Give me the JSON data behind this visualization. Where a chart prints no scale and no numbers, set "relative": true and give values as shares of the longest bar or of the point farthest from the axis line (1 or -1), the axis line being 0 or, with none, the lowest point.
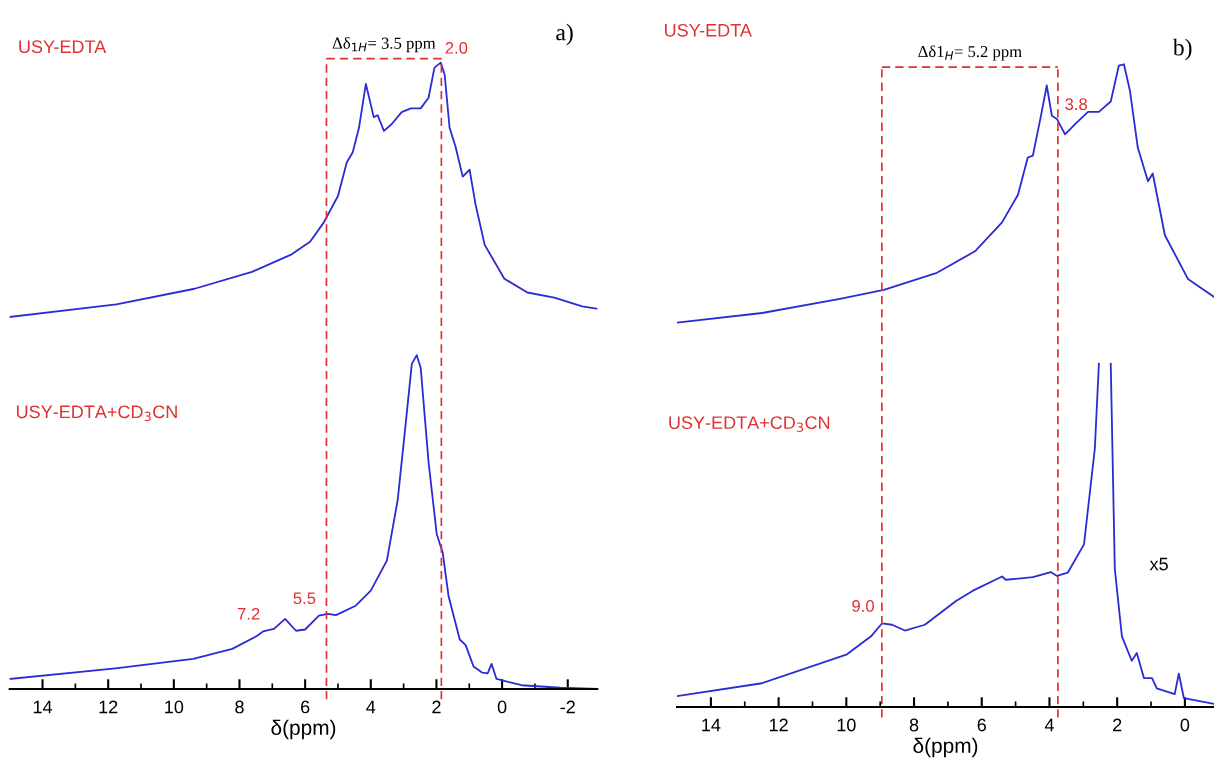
{
  "chart_data": [
    {
      "type": "line",
      "title": "a)",
      "relative": true,
      "xlabel": "δ(ppm)",
      "tick_labels": "x",
      "line_style": "solid",
      "xlim": [
        15,
        -2.9
      ],
      "xticks": [
        14,
        {
          "value": 13,
          "label": null
        },
        12,
        {
          "value": 11,
          "label": null
        },
        10,
        {
          "value": 9,
          "label": null
        },
        8,
        {
          "value": 7,
          "label": null
        },
        6,
        {
          "value": 5,
          "label": null
        },
        4,
        {
          "value": 3,
          "label": null
        },
        2,
        {
          "value": 1,
          "label": null
        },
        0,
        {
          "value": -1,
          "label": null
        },
        -2
      ],
      "series": [
        {
          "color": "#2b2bd6",
          "x": [
            15.0,
            11.75,
            9.37,
            7.62,
            6.41,
            5.85,
            5.43,
            5.0,
            4.73,
            4.55,
            4.36,
            4.15,
            4.0,
            3.91,
            3.79,
            3.6,
            3.36,
            3.06,
            2.78,
            2.48,
            2.24,
            2.06,
            1.87,
            1.75,
            1.6,
            1.42,
            1.2,
            0.99,
            0.81,
            0.53,
            -0.07,
            -0.77,
            -1.59,
            -2.44,
            -2.9
          ],
          "values": [
            0.594,
            0.614,
            0.639,
            0.666,
            0.694,
            0.714,
            0.745,
            0.787,
            0.841,
            0.857,
            0.896,
            0.966,
            0.933,
            0.913,
            0.916,
            0.891,
            0.902,
            0.921,
            0.927,
            0.927,
            0.944,
            0.992,
            1.0,
            0.981,
            0.896,
            0.866,
            0.818,
            0.829,
            0.774,
            0.709,
            0.655,
            0.633,
            0.625,
            0.611,
            0.607
          ]
        },
        {
          "color": "#2b2bd6",
          "x": [
            15.0,
            11.78,
            9.41,
            8.22,
            7.46,
            7.28,
            6.95,
            6.61,
            6.28,
            6.0,
            5.58,
            5.31,
            5.06,
            4.46,
            4.0,
            3.51,
            3.18,
            2.94,
            2.75,
            2.6,
            2.48,
            2.24,
            1.99,
            1.81,
            1.63,
            1.29,
            1.11,
            0.87,
            0.6,
            0.44,
            0.32,
            0.17,
            -0.59,
            -1.77,
            -2.9
          ],
          "values": [
            0.016,
            0.033,
            0.048,
            0.064,
            0.085,
            0.092,
            0.096,
            0.112,
            0.093,
            0.095,
            0.117,
            0.12,
            0.118,
            0.133,
            0.157,
            0.205,
            0.302,
            0.422,
            0.519,
            0.533,
            0.513,
            0.362,
            0.247,
            0.218,
            0.148,
            0.079,
            0.07,
            0.036,
            0.026,
            0.025,
            0.04,
            0.016,
            0.006,
            0.002,
            0.0
          ]
        }
      ],
      "ref_lines": [
        {
          "axis": "x",
          "value": 5.35,
          "color": "#e03030",
          "line_style": "dashed"
        },
        {
          "axis": "x",
          "value": 1.85,
          "color": "#e03030",
          "line_style": "dashed"
        }
      ],
      "annotations": [
        "USY-EDTA",
        "USY-EDTA+CD$_{3}$CN",
        "Δδ$_{1H}$= 3.5 ppm",
        {
          "text": "2.0",
          "x": 2.0,
          "y": 1.0
        },
        {
          "text": "5.5",
          "x": 5.5,
          "y": 0.117
        },
        {
          "text": "7.2",
          "x": 7.2,
          "y": 0.092
        }
      ]
    },
    {
      "type": "line",
      "title": "b)",
      "relative": true,
      "xlabel": "δ(ppm)",
      "tick_labels": "x",
      "line_style": "solid",
      "xlim": [
        15,
        -0.86
      ],
      "xticks": [
        14,
        {
          "value": 13,
          "label": null
        },
        12,
        {
          "value": 11,
          "label": null
        },
        10,
        {
          "value": 9,
          "label": null
        },
        8,
        {
          "value": 7,
          "label": null
        },
        6,
        {
          "value": 5,
          "label": null
        },
        4,
        {
          "value": 3,
          "label": null
        },
        2,
        {
          "value": 1,
          "label": null
        },
        0
      ],
      "series": [
        {
          "color": "#2b2bd6",
          "x": [
            15.0,
            12.49,
            10.19,
            8.89,
            7.35,
            6.2,
            5.4,
            4.93,
            4.64,
            4.49,
            4.25,
            4.08,
            3.93,
            3.78,
            3.54,
            3.22,
            2.86,
            2.54,
            2.19,
            1.95,
            1.8,
            1.62,
            1.39,
            1.09,
            0.95,
            0.59,
            -0.09,
            -0.86
          ],
          "values": [
            0.598,
            0.613,
            0.635,
            0.649,
            0.675,
            0.709,
            0.754,
            0.797,
            0.855,
            0.858,
            0.92,
            0.967,
            0.92,
            0.915,
            0.891,
            0.908,
            0.926,
            0.926,
            0.942,
            0.998,
            1.0,
            0.958,
            0.87,
            0.818,
            0.83,
            0.734,
            0.666,
            0.638
          ]
        },
        {
          "color": "#2b2bd6",
          "x": [
            15.0,
            12.49,
            9.98,
            9.27,
            8.95,
            8.65,
            8.27,
            7.68,
            6.76,
            6.26,
            5.52,
            5.4,
            5.29,
            4.49,
            3.96,
            3.78,
            3.46,
            2.98,
            2.66,
            2.54,
            2.4,
            2.19,
            2.07,
            1.86,
            1.57,
            1.42,
            1.21,
            0.97,
            0.83,
            0.3,
            0.18,
            0.03,
            -0.86
          ],
          "values": [
            0.017,
            0.037,
            0.082,
            0.11,
            0.13,
            0.128,
            0.119,
            0.128,
            0.165,
            0.181,
            0.2,
            0.203,
            0.198,
            0.202,
            0.21,
            0.204,
            0.209,
            0.253,
            0.402,
            0.534,
            null,
            0.534,
            0.215,
            0.11,
            0.072,
            0.084,
            0.045,
            0.045,
            0.029,
            0.02,
            0.052,
            0.014,
            0.005
          ]
        }
      ],
      "ref_lines": [
        {
          "axis": "x",
          "value": 8.95,
          "color": "#e03030",
          "line_style": "dashed"
        },
        {
          "axis": "x",
          "value": 3.75,
          "color": "#e03030",
          "line_style": "dashed"
        }
      ],
      "annotations": [
        "USY-EDTA",
        "USY-EDTA+CD$_{3}$CN",
        "Δδ1$_{H}$= 5.2 ppm",
        "x5",
        {
          "text": "3.8",
          "x": 3.8,
          "y": 0.915
        },
        {
          "text": "9.0",
          "x": 9.0,
          "y": 0.13
        }
      ]
    }
  ]
}
